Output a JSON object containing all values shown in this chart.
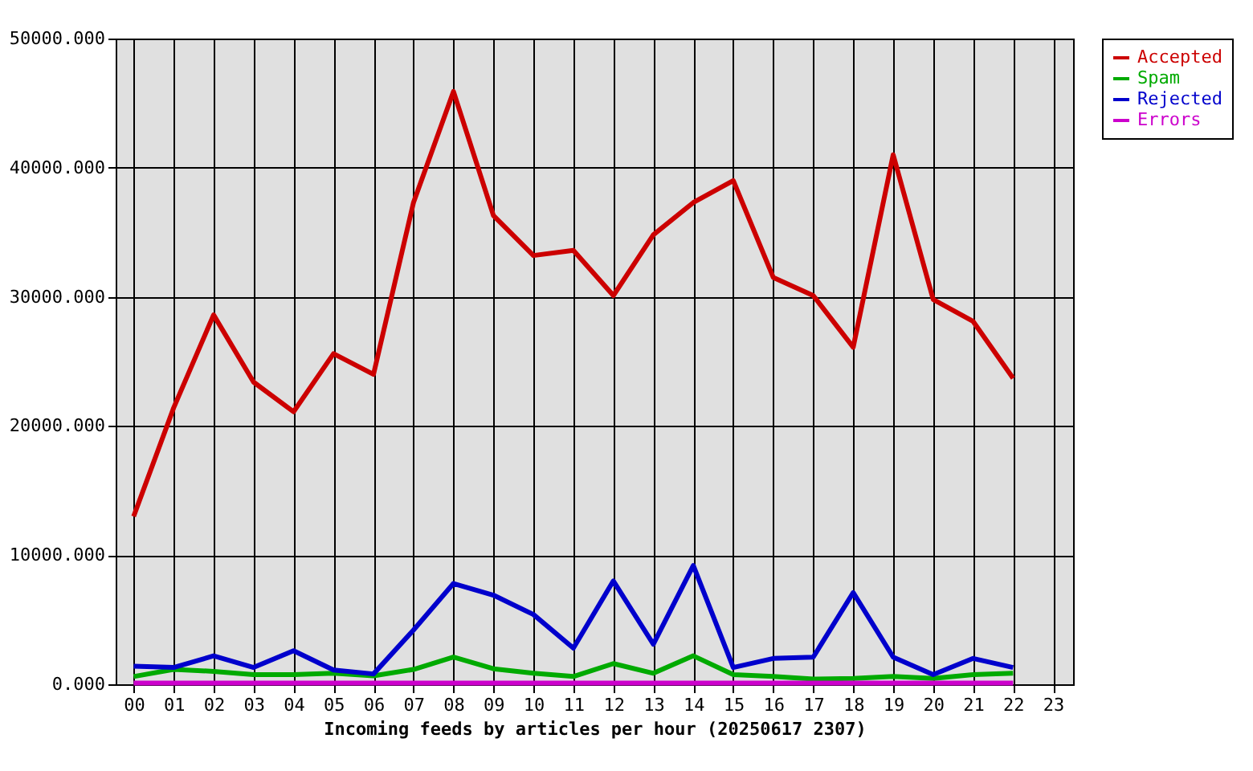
{
  "chart_data": {
    "type": "line",
    "xlabel": "Incoming feeds by articles per hour (20250617 2307)",
    "categories": [
      "00",
      "01",
      "02",
      "03",
      "04",
      "05",
      "06",
      "07",
      "08",
      "09",
      "10",
      "11",
      "12",
      "13",
      "14",
      "15",
      "16",
      "17",
      "18",
      "19",
      "20",
      "21",
      "22",
      "23"
    ],
    "series": [
      {
        "name": "Accepted",
        "color": "#cc0000",
        "values": [
          13000,
          21400,
          28600,
          23400,
          21100,
          25600,
          24000,
          37300,
          45900,
          36300,
          33200,
          33600,
          30100,
          34800,
          37300,
          39000,
          31500,
          30100,
          26100,
          41000,
          29800,
          28100,
          23700,
          null
        ]
      },
      {
        "name": "Spam",
        "color": "#00aa00",
        "values": [
          600,
          1150,
          1000,
          750,
          750,
          850,
          650,
          1150,
          2100,
          1200,
          850,
          600,
          1600,
          850,
          2200,
          750,
          600,
          400,
          450,
          600,
          450,
          750,
          850,
          null
        ]
      },
      {
        "name": "Rejected",
        "color": "#0000cc",
        "values": [
          1400,
          1300,
          2200,
          1300,
          2600,
          1100,
          800,
          4200,
          7800,
          6900,
          5400,
          2800,
          8000,
          3100,
          9200,
          1300,
          2000,
          2100,
          7100,
          2100,
          750,
          2000,
          1300,
          null
        ]
      },
      {
        "name": "Errors",
        "color": "#cc00cc",
        "values": [
          100,
          100,
          100,
          100,
          100,
          100,
          100,
          100,
          100,
          100,
          100,
          100,
          100,
          100,
          100,
          100,
          100,
          100,
          100,
          100,
          100,
          100,
          100,
          null
        ]
      }
    ],
    "ylim": [
      0,
      50000
    ],
    "yticks": [
      {
        "value": 0,
        "label": "0.000"
      },
      {
        "value": 10000,
        "label": "10000.000"
      },
      {
        "value": 20000,
        "label": "20000.000"
      },
      {
        "value": 30000,
        "label": "30000.000"
      },
      {
        "value": 40000,
        "label": "40000.000"
      },
      {
        "value": 50000,
        "label": "50000.000"
      }
    ],
    "grid": true,
    "legend": "top right",
    "line_style": "solid"
  }
}
